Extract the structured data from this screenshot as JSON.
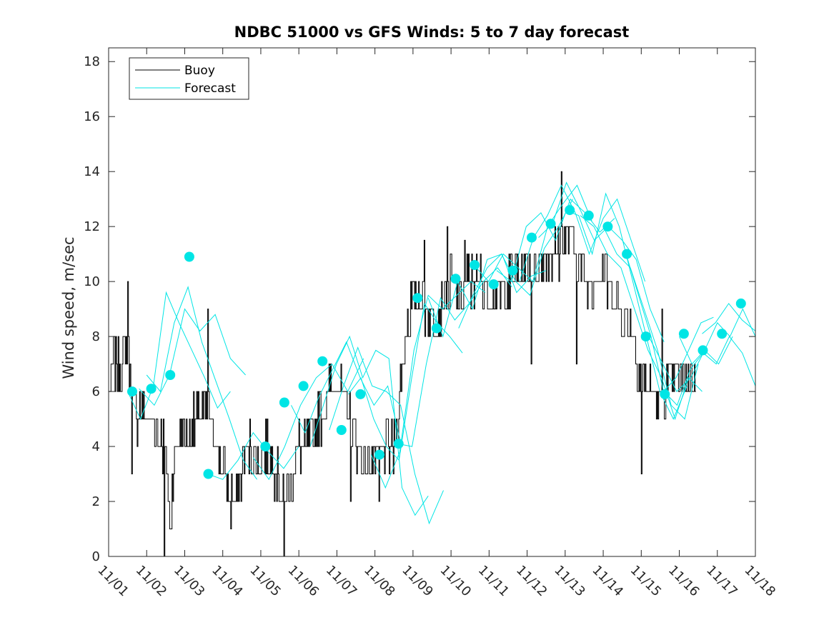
{
  "chart_data": {
    "type": "line",
    "title": "NDBC 51000 vs GFS Winds: 5 to 7 day forecast",
    "xlabel": "",
    "ylabel": "Wind speed, m/sec",
    "xlim": [
      0,
      17
    ],
    "ylim": [
      0,
      18.5
    ],
    "x_tick_labels": [
      "11/01",
      "11/02",
      "11/03",
      "11/04",
      "11/05",
      "11/06",
      "11/07",
      "11/08",
      "11/09",
      "11/10",
      "11/11",
      "11/12",
      "11/13",
      "11/14",
      "11/15",
      "11/16",
      "11/17",
      "11/18"
    ],
    "y_ticks": [
      0,
      2,
      4,
      6,
      8,
      10,
      12,
      14,
      16,
      18
    ],
    "legend": {
      "position": "top-left",
      "entries": [
        "Buoy",
        "Forecast"
      ]
    },
    "colors": {
      "buoy": "#000000",
      "forecast": "#00e5e5",
      "axes": "#262626"
    },
    "buoy": {
      "name": "Buoy",
      "anchors": [
        [
          0,
          6
        ],
        [
          0.1,
          7
        ],
        [
          0.35,
          7
        ],
        [
          0.5,
          7.5
        ],
        [
          0.7,
          5
        ],
        [
          0.9,
          5.5
        ],
        [
          1.0,
          5
        ],
        [
          1.3,
          4.5
        ],
        [
          1.45,
          4
        ],
        [
          1.55,
          2.5
        ],
        [
          1.6,
          1
        ],
        [
          1.7,
          3
        ],
        [
          1.85,
          4.5
        ],
        [
          2.1,
          4.5
        ],
        [
          2.3,
          5
        ],
        [
          2.5,
          5.5
        ],
        [
          2.65,
          5
        ],
        [
          2.8,
          4.5
        ],
        [
          2.9,
          3.5
        ],
        [
          3.1,
          3
        ],
        [
          3.2,
          2
        ],
        [
          3.4,
          2.5
        ],
        [
          3.55,
          3.5
        ],
        [
          3.7,
          4
        ],
        [
          3.9,
          3.5
        ],
        [
          4.1,
          4
        ],
        [
          4.3,
          3.5
        ],
        [
          4.45,
          3
        ],
        [
          4.6,
          2
        ],
        [
          4.8,
          2.5
        ],
        [
          4.9,
          3.5
        ],
        [
          5.0,
          4
        ],
        [
          5.3,
          4
        ],
        [
          5.55,
          5
        ],
        [
          5.8,
          6
        ],
        [
          6.0,
          6.5
        ],
        [
          6.2,
          5.5
        ],
        [
          6.4,
          5
        ],
        [
          6.55,
          4
        ],
        [
          6.7,
          3.5
        ],
        [
          6.85,
          3.5
        ],
        [
          7.0,
          3.5
        ],
        [
          7.2,
          4
        ],
        [
          7.5,
          4
        ],
        [
          7.6,
          5
        ],
        [
          7.7,
          6.5
        ],
        [
          7.85,
          8.5
        ],
        [
          8.0,
          9.5
        ],
        [
          8.2,
          9.5
        ],
        [
          8.4,
          9
        ],
        [
          8.6,
          8.5
        ],
        [
          8.8,
          9.5
        ],
        [
          9.0,
          10
        ],
        [
          9.2,
          9.5
        ],
        [
          9.4,
          10
        ],
        [
          9.6,
          10
        ],
        [
          9.8,
          10
        ],
        [
          10.0,
          9.5
        ],
        [
          10.2,
          9.5
        ],
        [
          10.4,
          9.5
        ],
        [
          10.6,
          10
        ],
        [
          10.8,
          10.5
        ],
        [
          11.0,
          10.5
        ],
        [
          11.3,
          10.5
        ],
        [
          11.5,
          11
        ],
        [
          11.8,
          11
        ],
        [
          12.0,
          11.5
        ],
        [
          12.1,
          12
        ],
        [
          12.3,
          11
        ],
        [
          12.5,
          10
        ],
        [
          12.7,
          10
        ],
        [
          13.0,
          10.5
        ],
        [
          13.2,
          9.5
        ],
        [
          13.4,
          9
        ],
        [
          13.6,
          8.5
        ],
        [
          13.8,
          8
        ],
        [
          14.0,
          6.5
        ],
        [
          14.2,
          6
        ],
        [
          14.4,
          5.5
        ],
        [
          14.6,
          6
        ],
        [
          14.8,
          6.5
        ],
        [
          15.0,
          6.5
        ],
        [
          15.2,
          6.5
        ],
        [
          15.45,
          6.5
        ]
      ],
      "noise": 0.85,
      "spikes": [
        [
          0.5,
          10
        ],
        [
          0.6,
          3
        ],
        [
          1.45,
          0
        ],
        [
          2.6,
          9
        ],
        [
          3.2,
          1
        ],
        [
          4.6,
          0
        ],
        [
          6.35,
          2
        ],
        [
          7.1,
          2
        ],
        [
          8.3,
          11.5
        ],
        [
          8.9,
          12
        ],
        [
          9.35,
          11.5
        ],
        [
          11.9,
          14
        ],
        [
          11.1,
          7
        ],
        [
          12.3,
          7
        ],
        [
          14.0,
          3
        ],
        [
          14.55,
          9
        ],
        [
          5.6,
          5
        ]
      ]
    },
    "forecast": {
      "name": "Forecast",
      "runs": [
        {
          "start": 0.5,
          "end": 3.2,
          "values": [
            6.0,
            5.0,
            6.2,
            9.6,
            8.5,
            7.5,
            6.5,
            5.4,
            6.0
          ]
        },
        {
          "start": 0.8,
          "end": 3.6,
          "values": [
            6.1,
            5.5,
            6.6,
            9.0,
            8.2,
            8.8,
            7.2,
            6.6
          ]
        },
        {
          "start": 1.0,
          "end": 3.9,
          "values": [
            6.6,
            6.0,
            8.5,
            9.8,
            7.8,
            6.4,
            5.0,
            3.5,
            2.8
          ]
        },
        {
          "start": 2.6,
          "end": 5.0,
          "values": [
            3.0,
            2.8,
            3.5,
            4.5,
            3.8,
            3.2,
            4.0
          ]
        },
        {
          "start": 3.8,
          "end": 6.7,
          "values": [
            3.6,
            2.8,
            4.0,
            5.5,
            6.5,
            7.0,
            6.0,
            7.2
          ]
        },
        {
          "start": 4.8,
          "end": 7.7,
          "values": [
            5.5,
            4.5,
            5.8,
            6.8,
            7.8,
            6.5,
            5.5,
            6.2,
            4.0
          ]
        },
        {
          "start": 5.3,
          "end": 8.4,
          "values": [
            4.0,
            5.5,
            7.0,
            8.0,
            6.5,
            7.5,
            7.2,
            2.5,
            1.5,
            2.2
          ]
        },
        {
          "start": 5.8,
          "end": 8.8,
          "values": [
            4.6,
            6.2,
            7.6,
            6.2,
            6.0,
            5.5,
            3.0,
            1.2,
            2.4
          ]
        },
        {
          "start": 6.3,
          "end": 9.3,
          "values": [
            5.9,
            6.5,
            5.0,
            4.0,
            3.5,
            6.5,
            9.2,
            8.5,
            8.0,
            7.4
          ]
        },
        {
          "start": 6.9,
          "end": 9.9,
          "values": [
            3.7,
            2.5,
            3.8,
            7.5,
            9.5,
            9.0,
            9.5,
            10.0,
            9.6
          ]
        },
        {
          "start": 7.6,
          "end": 10.6,
          "values": [
            4.1,
            4.0,
            7.0,
            9.4,
            8.6,
            9.2,
            10.0,
            10.5,
            9.8
          ]
        },
        {
          "start": 8.4,
          "end": 11.5,
          "values": [
            9.4,
            8.0,
            10.0,
            9.0,
            10.8,
            11.0,
            9.6,
            10.2,
            10.4
          ]
        },
        {
          "start": 9.2,
          "end": 12.2,
          "values": [
            8.3,
            9.5,
            10.5,
            11.0,
            10.0,
            9.5,
            11.2,
            12.0,
            13.0
          ]
        },
        {
          "start": 9.6,
          "end": 12.7,
          "values": [
            10.6,
            10.0,
            11.0,
            10.5,
            10.0,
            12.0,
            12.8,
            13.5,
            12.2
          ]
        },
        {
          "start": 10.2,
          "end": 13.3,
          "values": [
            10.4,
            10.0,
            12.0,
            12.5,
            11.5,
            13.0,
            12.5,
            11.8,
            12.3
          ]
        },
        {
          "start": 10.8,
          "end": 14.1,
          "values": [
            10.0,
            11.6,
            12.4,
            13.5,
            12.5,
            11.0,
            12.3,
            13.0,
            11.5,
            10.0
          ]
        },
        {
          "start": 11.3,
          "end": 14.6,
          "values": [
            11.6,
            12.1,
            13.6,
            12.6,
            11.5,
            12.0,
            11.5,
            10.8,
            9.0,
            7.8
          ]
        },
        {
          "start": 12.0,
          "end": 15.2,
          "values": [
            12.6,
            12.4,
            11.0,
            13.2,
            12.0,
            10.0,
            8.0,
            6.0,
            5.0,
            6.2
          ]
        },
        {
          "start": 12.4,
          "end": 15.6,
          "values": [
            12.4,
            12.0,
            11.0,
            10.5,
            9.0,
            7.5,
            6.5,
            5.0,
            6.5,
            6.0
          ]
        },
        {
          "start": 13.0,
          "end": 15.5,
          "values": [
            12.0,
            11.0,
            10.5,
            9.0,
            7.5,
            5.5,
            5.0,
            7.0
          ]
        },
        {
          "start": 13.6,
          "end": 15.9,
          "values": [
            11.0,
            9.5,
            8.0,
            6.0,
            6.5,
            7.5,
            8.5,
            8.7
          ]
        },
        {
          "start": 14.2,
          "end": 16.4,
          "values": [
            8.0,
            7.0,
            6.0,
            6.5,
            7.5,
            7.0,
            8.0
          ]
        },
        {
          "start": 14.6,
          "end": 17.0,
          "values": [
            6.0,
            5.5,
            6.8,
            7.4,
            7.0,
            8.0,
            7.4,
            6.2
          ]
        },
        {
          "start": 15.0,
          "end": 17.0,
          "values": [
            8.0,
            7.0,
            7.5,
            8.5,
            8.0,
            9.0,
            8.0
          ]
        },
        {
          "start": 15.6,
          "end": 17.0,
          "values": [
            8.1,
            8.5,
            9.2,
            8.6,
            8.2
          ]
        }
      ],
      "markers": [
        [
          0.62,
          6.0
        ],
        [
          1.12,
          6.1
        ],
        [
          1.62,
          6.6
        ],
        [
          2.12,
          10.9
        ],
        [
          2.62,
          3.0
        ],
        [
          4.12,
          4.0
        ],
        [
          4.62,
          5.6
        ],
        [
          5.12,
          6.2
        ],
        [
          5.62,
          7.1
        ],
        [
          6.12,
          4.6
        ],
        [
          6.62,
          5.9
        ],
        [
          7.12,
          3.7
        ],
        [
          7.62,
          4.1
        ],
        [
          8.12,
          9.4
        ],
        [
          8.62,
          8.3
        ],
        [
          9.12,
          10.1
        ],
        [
          9.62,
          10.6
        ],
        [
          10.12,
          9.9
        ],
        [
          10.62,
          10.4
        ],
        [
          11.12,
          11.6
        ],
        [
          11.62,
          12.1
        ],
        [
          12.12,
          12.6
        ],
        [
          12.62,
          12.4
        ],
        [
          13.12,
          12.0
        ],
        [
          13.62,
          11.0
        ],
        [
          14.12,
          8.0
        ],
        [
          14.62,
          5.9
        ],
        [
          15.12,
          8.1
        ],
        [
          15.62,
          7.5
        ],
        [
          16.12,
          8.1
        ],
        [
          16.62,
          9.2
        ]
      ]
    }
  }
}
